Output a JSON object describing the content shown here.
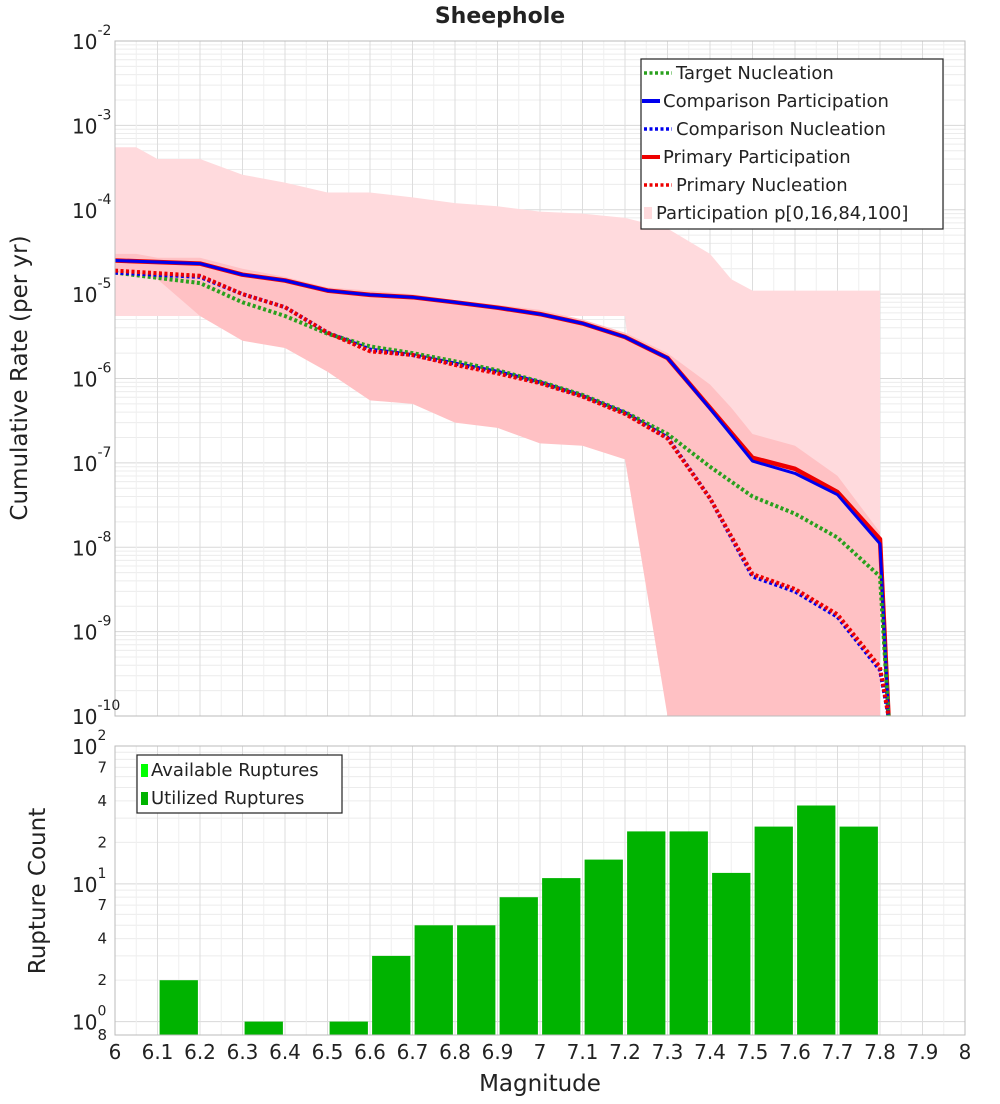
{
  "chart_data": [
    {
      "type": "line",
      "title": "Sheephole",
      "xlabel": "Magnitude",
      "ylabel": "Cumulative Rate (per yr)",
      "yscale": "log",
      "xlim": [
        6,
        8
      ],
      "ylim": [
        1e-10,
        0.01
      ],
      "y_tick_base": "10",
      "y_tick_exponents": [
        "-2",
        "-3",
        "-4",
        "-5",
        "-6",
        "-7",
        "-8",
        "-9",
        "-10"
      ],
      "legend_position": "top-right",
      "band": {
        "name": "Participation p[0,16,84,100]",
        "color": "#ffdadd",
        "inner_color": "#ffc1c4",
        "x": [
          6.0,
          6.05,
          6.1,
          6.2,
          6.3,
          6.4,
          6.5,
          6.6,
          6.7,
          6.8,
          6.9,
          7.0,
          7.1,
          7.2,
          7.3,
          7.4,
          7.45,
          7.5,
          7.6,
          7.7,
          7.8
        ],
        "p0": [
          5.5e-06,
          5.5e-06,
          5.5e-06,
          5.5e-06,
          5.5e-06,
          5.5e-06,
          5.5e-06,
          5.5e-06,
          5.5e-06,
          5.5e-06,
          5.5e-06,
          5.5e-06,
          5.5e-06,
          5.5e-06,
          1e-10,
          1e-10,
          1e-10,
          1e-10,
          1e-10,
          1e-10,
          1e-10
        ],
        "p16": [
          1.8e-05,
          1.8e-05,
          1.5e-05,
          5.5e-06,
          2.8e-06,
          2.3e-06,
          1.2e-06,
          5.5e-07,
          5e-07,
          3e-07,
          2.6e-07,
          1.7e-07,
          1.6e-07,
          1.1e-07,
          1e-10,
          1e-10,
          1e-10,
          1e-10,
          1e-10,
          1e-10,
          1e-10
        ],
        "p84": [
          3e-05,
          3e-05,
          2.7e-05,
          2.7e-05,
          2e-05,
          1.6e-05,
          1.2e-05,
          1.1e-05,
          1e-05,
          8.5e-06,
          7.5e-06,
          6.5e-06,
          5e-06,
          3.5e-06,
          2e-06,
          8.5e-07,
          4.5e-07,
          2.2e-07,
          1.6e-07,
          7e-08,
          1.5e-08
        ],
        "p100": [
          0.00055,
          0.00055,
          0.0004,
          0.0004,
          0.00026,
          0.00021,
          0.00016,
          0.00016,
          0.00014,
          0.00012,
          0.00011,
          9.5e-05,
          9e-05,
          8e-05,
          6e-05,
          3e-05,
          1.5e-05,
          1.1e-05,
          1.1e-05,
          1.1e-05,
          1.1e-05
        ]
      },
      "series": [
        {
          "name": "Target Nucleation",
          "color": "#2aa01e",
          "style": "dotted",
          "x": [
            6.0,
            6.2,
            6.3,
            6.4,
            6.5,
            6.6,
            6.7,
            6.8,
            6.9,
            7.0,
            7.1,
            7.2,
            7.3,
            7.4,
            7.5,
            7.6,
            7.7,
            7.8,
            7.82
          ],
          "y": [
            1.8e-05,
            1.35e-05,
            8e-06,
            5.5e-06,
            3.4e-06,
            2.4e-06,
            2e-06,
            1.6e-06,
            1.25e-06,
            9.2e-07,
            6.4e-07,
            4e-07,
            2.2e-07,
            9e-08,
            4e-08,
            2.5e-08,
            1.3e-08,
            4.5e-09,
            1e-10
          ]
        },
        {
          "name": "Comparison Participation",
          "color": "#0000ee",
          "style": "solid",
          "x": [
            6.0,
            6.2,
            6.3,
            6.4,
            6.5,
            6.6,
            6.7,
            6.8,
            6.9,
            7.0,
            7.1,
            7.2,
            7.3,
            7.4,
            7.5,
            7.6,
            7.7,
            7.8,
            7.82
          ],
          "y": [
            2.5e-05,
            2.3e-05,
            1.7e-05,
            1.45e-05,
            1.1e-05,
            9.8e-06,
            9.2e-06,
            8e-06,
            6.9e-06,
            5.8e-06,
            4.5e-06,
            3.1e-06,
            1.75e-06,
            4.4e-07,
            1.05e-07,
            7.5e-08,
            4.2e-08,
            1.1e-08,
            1e-10
          ]
        },
        {
          "name": "Comparison Nucleation",
          "color": "#0000ee",
          "style": "dotted",
          "x": [
            6.0,
            6.2,
            6.3,
            6.4,
            6.5,
            6.6,
            6.7,
            6.8,
            6.9,
            7.0,
            7.1,
            7.2,
            7.3,
            7.4,
            7.5,
            7.6,
            7.7,
            7.8,
            7.82
          ],
          "y": [
            1.8e-05,
            1.6e-05,
            1e-05,
            7e-06,
            3.5e-06,
            2.2e-06,
            1.9e-06,
            1.5e-06,
            1.2e-06,
            9e-07,
            6.2e-07,
            3.9e-07,
            2e-07,
            3.8e-08,
            4.5e-09,
            3e-09,
            1.5e-09,
            3.5e-10,
            1e-10
          ]
        },
        {
          "name": "Primary Participation",
          "color": "#ee0000",
          "style": "solid",
          "x": [
            6.0,
            6.2,
            6.3,
            6.4,
            6.5,
            6.6,
            6.7,
            6.8,
            6.9,
            7.0,
            7.1,
            7.2,
            7.3,
            7.4,
            7.5,
            7.6,
            7.7,
            7.8,
            7.82
          ],
          "y": [
            2.5e-05,
            2.3e-05,
            1.7e-05,
            1.45e-05,
            1.1e-05,
            9.8e-06,
            9.2e-06,
            8e-06,
            6.9e-06,
            5.8e-06,
            4.5e-06,
            3.1e-06,
            1.75e-06,
            4.5e-07,
            1.15e-07,
            8.5e-08,
            4.5e-08,
            1.25e-08,
            1e-10
          ]
        },
        {
          "name": "Primary Nucleation",
          "color": "#ee0000",
          "style": "dotted",
          "x": [
            6.0,
            6.2,
            6.3,
            6.4,
            6.5,
            6.6,
            6.7,
            6.8,
            6.9,
            7.0,
            7.1,
            7.2,
            7.3,
            7.4,
            7.5,
            7.6,
            7.7,
            7.8,
            7.82
          ],
          "y": [
            1.9e-05,
            1.65e-05,
            1e-05,
            7e-06,
            3.5e-06,
            2.1e-06,
            1.9e-06,
            1.45e-06,
            1.15e-06,
            8.8e-07,
            6.1e-07,
            3.8e-07,
            1.95e-07,
            3.8e-08,
            4.8e-09,
            3.2e-09,
            1.6e-09,
            3.8e-10,
            1e-10
          ]
        }
      ],
      "legend": [
        "Target Nucleation",
        "Comparison Participation",
        "Comparison Nucleation",
        "Primary Participation",
        "Primary Nucleation",
        "Participation p[0,16,84,100]"
      ]
    },
    {
      "type": "bar",
      "xlabel": "Magnitude",
      "ylabel": "Rupture Count",
      "yscale": "log",
      "xlim": [
        6,
        8
      ],
      "ylim": [
        0.8,
        100
      ],
      "legend_position": "top-left",
      "x_ticks": [
        "6",
        "6.1",
        "6.2",
        "6.3",
        "6.4",
        "6.5",
        "6.6",
        "6.7",
        "6.8",
        "6.9",
        "7",
        "7.1",
        "7.2",
        "7.3",
        "7.4",
        "7.5",
        "7.6",
        "7.7",
        "7.8",
        "7.9",
        "8"
      ],
      "y_major": [
        {
          "value": 1,
          "base": "10",
          "exp": "0"
        },
        {
          "value": 10,
          "base": "10",
          "exp": "1"
        },
        {
          "value": 100,
          "base": "10",
          "exp": "2"
        }
      ],
      "y_minor_labels": [
        {
          "value": 0.8,
          "label": "8"
        },
        {
          "value": 2,
          "label": "2"
        },
        {
          "value": 4,
          "label": "4"
        },
        {
          "value": 7,
          "label": "7"
        },
        {
          "value": 20,
          "label": "2"
        },
        {
          "value": 40,
          "label": "4"
        },
        {
          "value": 70,
          "label": "7"
        }
      ],
      "series": [
        {
          "name": "Available Ruptures",
          "color": "#00ff00",
          "values": []
        },
        {
          "name": "Utilized Ruptures",
          "color": "#00b300",
          "x_centers": [
            6.15,
            6.35,
            6.55,
            6.65,
            6.75,
            6.85,
            6.95,
            7.05,
            7.15,
            7.25,
            7.35,
            7.45,
            7.55,
            7.65,
            7.75
          ],
          "values": [
            2,
            1,
            1,
            3,
            5,
            5,
            8,
            11,
            15,
            24,
            24,
            12,
            26,
            37,
            26
          ]
        }
      ],
      "legend": [
        "Available Ruptures",
        "Utilized Ruptures"
      ]
    }
  ]
}
